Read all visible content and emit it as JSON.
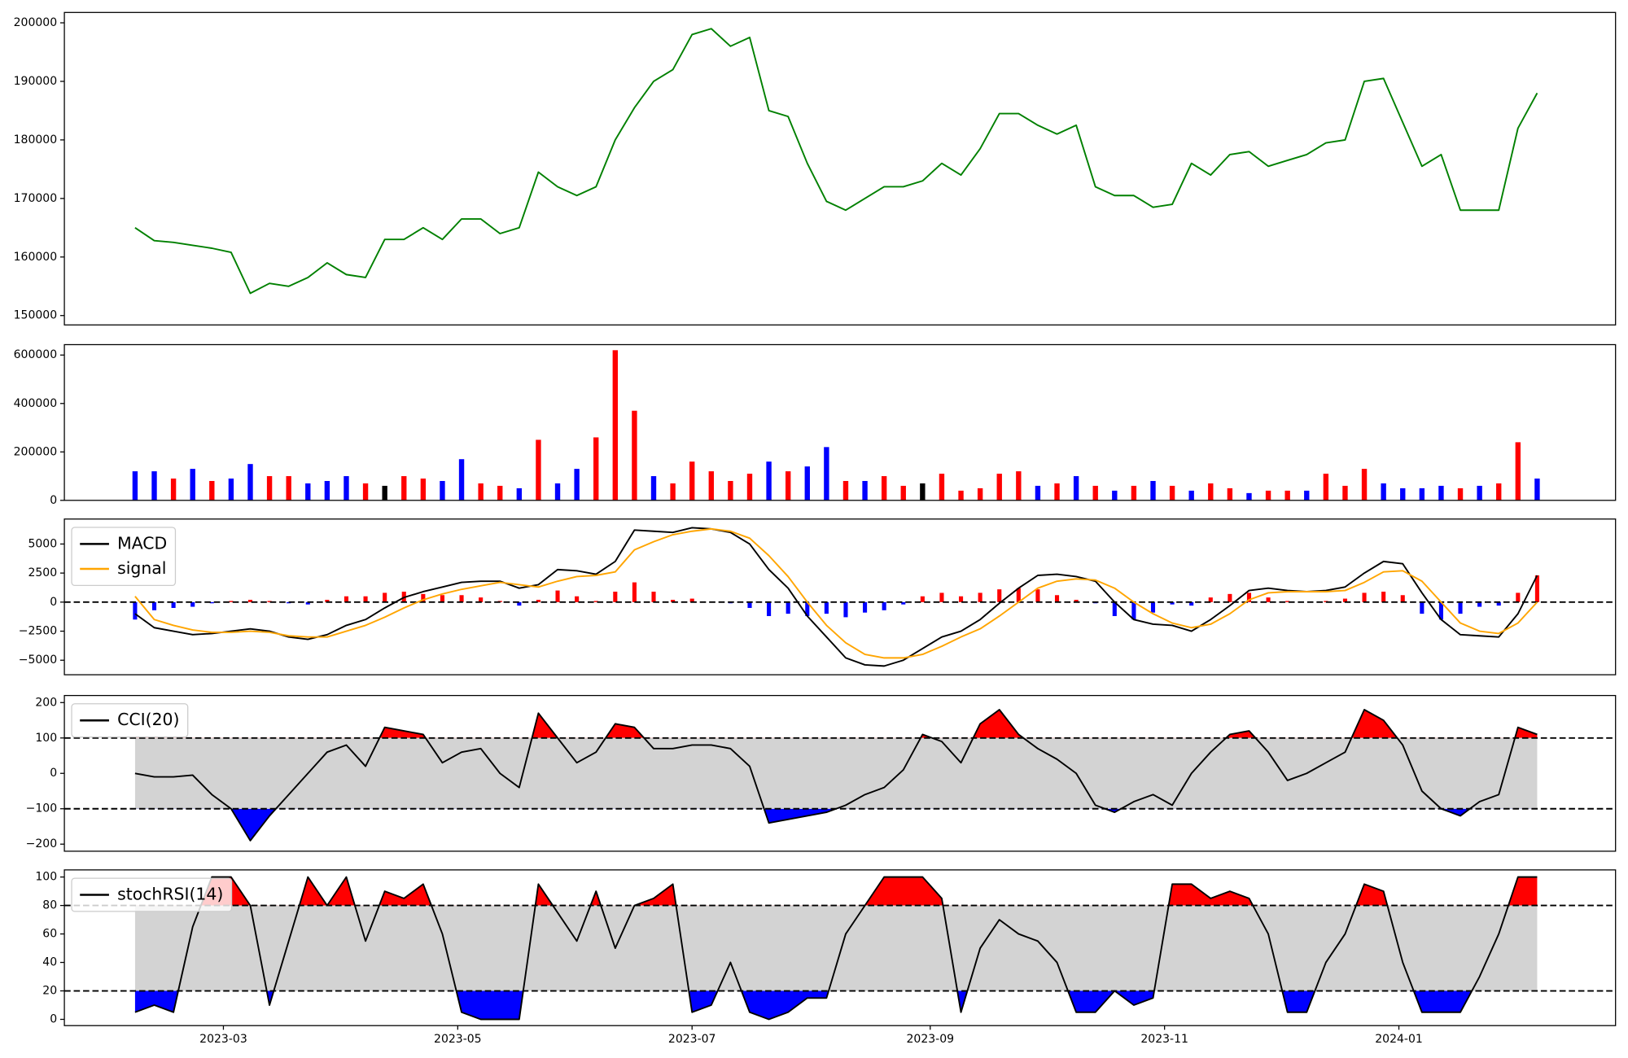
{
  "chart_data": [
    {
      "type": "line",
      "x": [
        19394,
        19399,
        19404,
        19409,
        19414,
        19419,
        19424,
        19429,
        19434,
        19439,
        19444,
        19449,
        19454,
        19459,
        19464,
        19469,
        19474,
        19479,
        19484,
        19489,
        19494,
        19499,
        19504,
        19509,
        19514,
        19519,
        19524,
        19529,
        19534,
        19539,
        19544,
        19549,
        19554,
        19559,
        19564,
        19569,
        19574,
        19579,
        19584,
        19589,
        19594,
        19599,
        19604,
        19609,
        19614,
        19619,
        19624,
        19629,
        19634,
        19639,
        19644,
        19649,
        19654,
        19659,
        19664,
        19669,
        19674,
        19679,
        19684,
        19689,
        19694,
        19699,
        19704,
        19709,
        19714,
        19719,
        19724,
        19729,
        19734,
        19739,
        19744,
        19749,
        19754,
        19759
      ],
      "values": [
        165000,
        162800,
        162500,
        162000,
        161500,
        160800,
        153800,
        155500,
        155000,
        156500,
        159000,
        157000,
        156500,
        163000,
        163000,
        165000,
        163000,
        166500,
        166500,
        164000,
        165000,
        174500,
        172000,
        170500,
        172000,
        180000,
        185500,
        190000,
        192000,
        198000,
        199000,
        196000,
        197500,
        185000,
        184000,
        176000,
        169500,
        168000,
        170000,
        172000,
        172000,
        173000,
        176000,
        174000,
        178500,
        184500,
        184500,
        182500,
        181000,
        182500,
        172000,
        170500,
        170500,
        168500,
        169000,
        176000,
        174000,
        177500,
        178000,
        175500,
        176500,
        177500,
        179500,
        180000,
        190000,
        190500,
        183000,
        175500,
        177500,
        168000,
        168000,
        168000,
        182000,
        188000
      ],
      "color": "#008000",
      "xlim": [
        19375.6,
        19779.4
      ],
      "ylim": [
        148400,
        201770
      ],
      "yticks": [
        150000,
        160000,
        170000,
        180000,
        190000,
        200000
      ]
    },
    {
      "type": "bar",
      "x": [
        19394,
        19399,
        19404,
        19409,
        19414,
        19419,
        19424,
        19429,
        19434,
        19439,
        19444,
        19449,
        19454,
        19459,
        19464,
        19469,
        19474,
        19479,
        19484,
        19489,
        19494,
        19499,
        19504,
        19509,
        19514,
        19519,
        19524,
        19529,
        19534,
        19539,
        19544,
        19549,
        19554,
        19559,
        19564,
        19569,
        19574,
        19579,
        19584,
        19589,
        19594,
        19599,
        19604,
        19609,
        19614,
        19619,
        19624,
        19629,
        19634,
        19639,
        19644,
        19649,
        19654,
        19659,
        19664,
        19669,
        19674,
        19679,
        19684,
        19689,
        19694,
        19699,
        19704,
        19709,
        19714,
        19719,
        19724,
        19729,
        19734,
        19739,
        19744,
        19749,
        19754,
        19759
      ],
      "values": [
        120000,
        120000,
        90000,
        130000,
        80000,
        90000,
        150000,
        100000,
        100000,
        70000,
        80000,
        100000,
        70000,
        60000,
        100000,
        90000,
        80000,
        170000,
        70000,
        60000,
        50000,
        250000,
        70000,
        130000,
        260000,
        620000,
        370000,
        100000,
        70000,
        160000,
        120000,
        80000,
        110000,
        160000,
        120000,
        140000,
        220000,
        80000,
        80000,
        100000,
        60000,
        70000,
        110000,
        40000,
        50000,
        110000,
        120000,
        60000,
        70000,
        100000,
        60000,
        40000,
        60000,
        80000,
        60000,
        40000,
        70000,
        50000,
        30000,
        40000,
        40000,
        40000,
        110000,
        60000,
        130000,
        70000,
        50000,
        50000,
        60000,
        50000,
        60000,
        70000,
        240000,
        90000
      ],
      "colors": [
        "#0000ff",
        "#0000ff",
        "#ff0000",
        "#0000ff",
        "#ff0000",
        "#0000ff",
        "#0000ff",
        "#ff0000",
        "#ff0000",
        "#0000ff",
        "#0000ff",
        "#0000ff",
        "#ff0000",
        "#000000",
        "#ff0000",
        "#ff0000",
        "#0000ff",
        "#0000ff",
        "#ff0000",
        "#ff0000",
        "#0000ff",
        "#ff0000",
        "#0000ff",
        "#0000ff",
        "#ff0000",
        "#ff0000",
        "#ff0000",
        "#0000ff",
        "#ff0000",
        "#ff0000",
        "#ff0000",
        "#ff0000",
        "#ff0000",
        "#0000ff",
        "#ff0000",
        "#0000ff",
        "#0000ff",
        "#ff0000",
        "#0000ff",
        "#ff0000",
        "#ff0000",
        "#000000",
        "#ff0000",
        "#ff0000",
        "#ff0000",
        "#ff0000",
        "#ff0000",
        "#0000ff",
        "#ff0000",
        "#0000ff",
        "#ff0000",
        "#0000ff",
        "#ff0000",
        "#0000ff",
        "#ff0000",
        "#0000ff",
        "#ff0000",
        "#ff0000",
        "#0000ff",
        "#ff0000",
        "#ff0000",
        "#0000ff",
        "#ff0000",
        "#ff0000",
        "#ff0000",
        "#0000ff",
        "#0000ff",
        "#0000ff",
        "#0000ff",
        "#ff0000",
        "#0000ff",
        "#ff0000",
        "#ff0000",
        "#0000ff"
      ],
      "xlim": [
        19375.6,
        19779.4
      ],
      "ylim": [
        0,
        643000
      ],
      "yticks": [
        0,
        200000,
        400000,
        600000
      ]
    },
    {
      "type": "macd",
      "x": [
        19394,
        19399,
        19404,
        19409,
        19414,
        19419,
        19424,
        19429,
        19434,
        19439,
        19444,
        19449,
        19454,
        19459,
        19464,
        19469,
        19474,
        19479,
        19484,
        19489,
        19494,
        19499,
        19504,
        19509,
        19514,
        19519,
        19524,
        19529,
        19534,
        19539,
        19544,
        19549,
        19554,
        19559,
        19564,
        19569,
        19574,
        19579,
        19584,
        19589,
        19594,
        19599,
        19604,
        19609,
        19614,
        19619,
        19624,
        19629,
        19634,
        19639,
        19644,
        19649,
        19654,
        19659,
        19664,
        19669,
        19674,
        19679,
        19684,
        19689,
        19694,
        19699,
        19704,
        19709,
        19714,
        19719,
        19724,
        19729,
        19734,
        19739,
        19744,
        19749,
        19754,
        19759
      ],
      "series": [
        {
          "name": "MACD",
          "color": "#000000",
          "values": [
            -1000,
            -2200,
            -2500,
            -2800,
            -2700,
            -2500,
            -2300,
            -2500,
            -3000,
            -3200,
            -2800,
            -2000,
            -1500,
            -500,
            400,
            900,
            1300,
            1700,
            1800,
            1800,
            1200,
            1500,
            2800,
            2700,
            2400,
            3500,
            6200,
            6100,
            6000,
            6400,
            6300,
            6000,
            5000,
            2800,
            1200,
            -1200,
            -3000,
            -4800,
            -5400,
            -5500,
            -5000,
            -4000,
            -3000,
            -2500,
            -1500,
            -100,
            1200,
            2300,
            2400,
            2200,
            1800,
            0,
            -1500,
            -1900,
            -2000,
            -2500,
            -1500,
            -300,
            1000,
            1200,
            1000,
            900,
            1000,
            1300,
            2500,
            3500,
            3300,
            800,
            -1500,
            -2800,
            -2900,
            -3000,
            -1000,
            2300
          ]
        },
        {
          "name": "signal",
          "color": "#ffa500",
          "values": [
            500,
            -1500,
            -2000,
            -2400,
            -2600,
            -2600,
            -2500,
            -2600,
            -2900,
            -3000,
            -3000,
            -2500,
            -2000,
            -1300,
            -500,
            200,
            700,
            1100,
            1400,
            1700,
            1500,
            1300,
            1800,
            2200,
            2300,
            2600,
            4500,
            5200,
            5800,
            6100,
            6300,
            6100,
            5500,
            4000,
            2200,
            0,
            -2000,
            -3500,
            -4500,
            -4800,
            -4800,
            -4500,
            -3800,
            -3000,
            -2300,
            -1200,
            0,
            1200,
            1800,
            2000,
            1900,
            1200,
            0,
            -1000,
            -1800,
            -2200,
            -1900,
            -1000,
            200,
            800,
            900,
            900,
            900,
            1000,
            1700,
            2600,
            2700,
            1800,
            0,
            -1800,
            -2500,
            -2700,
            -1800,
            0
          ]
        }
      ],
      "histogram": {
        "up_color": "#ff0000",
        "down_color": "#0000ff",
        "values": [
          -1500,
          -700,
          -500,
          -400,
          -100,
          100,
          200,
          100,
          -100,
          -200,
          200,
          500,
          500,
          800,
          900,
          700,
          600,
          600,
          400,
          100,
          -300,
          200,
          1000,
          500,
          100,
          900,
          1700,
          900,
          200,
          300,
          0,
          -100,
          -500,
          -1200,
          -1000,
          -1200,
          -1000,
          -1300,
          -900,
          -700,
          -200,
          500,
          800,
          500,
          800,
          1100,
          1200,
          1100,
          600,
          200,
          -100,
          -1200,
          -1500,
          -900,
          -200,
          -300,
          400,
          700,
          800,
          400,
          100,
          0,
          100,
          300,
          800,
          900,
          600,
          -1000,
          -1500,
          -1000,
          -400,
          -300,
          800,
          2300
        ]
      },
      "hline": 0,
      "legend": "upper left",
      "xlim": [
        19375.6,
        19779.4
      ],
      "ylim": [
        -6250,
        7150
      ],
      "yticks": [
        {
          "value": -5000,
          "label": "−5000"
        },
        {
          "value": -2500,
          "label": "−2500"
        },
        0,
        2500,
        5000
      ]
    },
    {
      "type": "oscillator",
      "x": [
        19394,
        19399,
        19404,
        19409,
        19414,
        19419,
        19424,
        19429,
        19434,
        19439,
        19444,
        19449,
        19454,
        19459,
        19464,
        19469,
        19474,
        19479,
        19484,
        19489,
        19494,
        19499,
        19504,
        19509,
        19514,
        19519,
        19524,
        19529,
        19534,
        19539,
        19544,
        19549,
        19554,
        19559,
        19564,
        19569,
        19574,
        19579,
        19584,
        19589,
        19594,
        19599,
        19604,
        19609,
        19614,
        19619,
        19624,
        19629,
        19634,
        19639,
        19644,
        19649,
        19654,
        19659,
        19664,
        19669,
        19674,
        19679,
        19684,
        19689,
        19694,
        19699,
        19704,
        19709,
        19714,
        19719,
        19724,
        19729,
        19734,
        19739,
        19744,
        19749,
        19754,
        19759
      ],
      "series": [
        {
          "name": "CCI(20)",
          "color": "#000000",
          "values": [
            0,
            -10,
            -10,
            -5,
            -60,
            -100,
            -190,
            -120,
            -60,
            0,
            60,
            80,
            20,
            130,
            120,
            110,
            30,
            60,
            70,
            0,
            -40,
            170,
            100,
            30,
            60,
            140,
            130,
            70,
            70,
            80,
            80,
            70,
            20,
            -140,
            -130,
            -120,
            -110,
            -90,
            -60,
            -40,
            10,
            110,
            90,
            30,
            140,
            180,
            110,
            70,
            40,
            0,
            -90,
            -110,
            -80,
            -60,
            -90,
            0,
            60,
            110,
            120,
            60,
            -20,
            0,
            30,
            60,
            180,
            150,
            80,
            -50,
            -100,
            -120,
            -80,
            -60,
            130,
            110
          ]
        }
      ],
      "upper": 100,
      "lower": -100,
      "band_color": "#d3d3d3",
      "upper_color": "#ff0000",
      "lower_color": "#0000ff",
      "legend": "upper left",
      "xlim": [
        19375.6,
        19779.4
      ],
      "ylim": [
        -220,
        220
      ],
      "yticks": [
        {
          "value": -200,
          "label": "−200"
        },
        {
          "value": -100,
          "label": "−100"
        },
        0,
        100,
        200
      ]
    },
    {
      "type": "oscillator",
      "x": [
        19394,
        19399,
        19404,
        19409,
        19414,
        19419,
        19424,
        19429,
        19434,
        19439,
        19444,
        19449,
        19454,
        19459,
        19464,
        19469,
        19474,
        19479,
        19484,
        19489,
        19494,
        19499,
        19504,
        19509,
        19514,
        19519,
        19524,
        19529,
        19534,
        19539,
        19544,
        19549,
        19554,
        19559,
        19564,
        19569,
        19574,
        19579,
        19584,
        19589,
        19594,
        19599,
        19604,
        19609,
        19614,
        19619,
        19624,
        19629,
        19634,
        19639,
        19644,
        19649,
        19654,
        19659,
        19664,
        19669,
        19674,
        19679,
        19684,
        19689,
        19694,
        19699,
        19704,
        19709,
        19714,
        19719,
        19724,
        19729,
        19734,
        19739,
        19744,
        19749,
        19754,
        19759
      ],
      "series": [
        {
          "name": "stochRSI(14)",
          "color": "#000000",
          "values": [
            5,
            10,
            5,
            65,
            100,
            100,
            80,
            10,
            55,
            100,
            80,
            100,
            55,
            90,
            85,
            95,
            60,
            5,
            0,
            0,
            0,
            95,
            75,
            55,
            90,
            50,
            80,
            85,
            95,
            5,
            10,
            40,
            5,
            0,
            5,
            15,
            15,
            60,
            80,
            100,
            100,
            100,
            85,
            5,
            50,
            70,
            60,
            55,
            40,
            5,
            5,
            20,
            10,
            15,
            95,
            95,
            85,
            90,
            85,
            60,
            5,
            5,
            40,
            60,
            95,
            90,
            40,
            5,
            5,
            5,
            30,
            60,
            100,
            100
          ]
        }
      ],
      "upper": 80,
      "lower": 20,
      "band_color": "#d3d3d3",
      "upper_color": "#ff0000",
      "lower_color": "#0000ff",
      "legend": "upper left",
      "xlim": [
        19375.6,
        19779.4
      ],
      "ylim": [
        -4.4,
        105
      ],
      "yticks": [
        0,
        20,
        40,
        60,
        80,
        100
      ],
      "xticks": [
        {
          "value": 19417,
          "label": "2023-03"
        },
        {
          "value": 19478,
          "label": "2023-05"
        },
        {
          "value": 19539,
          "label": "2023-07"
        },
        {
          "value": 19601,
          "label": "2023-09"
        },
        {
          "value": 19662,
          "label": "2023-11"
        },
        {
          "value": 19723,
          "label": "2024-01"
        }
      ]
    }
  ]
}
